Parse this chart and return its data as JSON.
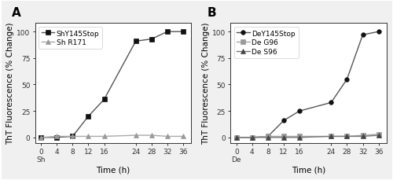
{
  "panel_A": {
    "label": "A",
    "series": [
      {
        "name": "ShY145Stop",
        "x": [
          0,
          4,
          8,
          12,
          16,
          24,
          28,
          32,
          36
        ],
        "y": [
          0,
          0,
          1,
          20,
          36,
          91,
          93,
          100,
          100
        ],
        "marker": "s",
        "color": "#111111",
        "linecolor": "#555555",
        "linewidth": 1.0,
        "markersize": 4
      },
      {
        "name": "Sh R171",
        "x": [
          0,
          4,
          8,
          12,
          16,
          24,
          28,
          32,
          36
        ],
        "y": [
          0,
          1,
          1,
          1,
          1,
          2,
          2,
          1,
          1
        ],
        "marker": "^",
        "color": "#999999",
        "linecolor": "#aaaaaa",
        "linewidth": 1.0,
        "markersize": 4
      }
    ],
    "xlabel": "Time (h)",
    "ylabel": "ThT Fluorescence (% Change)",
    "xlim": [
      -1.5,
      38
    ],
    "ylim": [
      -5,
      108
    ],
    "xticks": [
      0,
      4,
      8,
      12,
      16,
      24,
      28,
      32,
      36
    ],
    "xticklabels": [
      "0",
      "4",
      "8",
      "12",
      "16",
      "24",
      "28",
      "32",
      "36"
    ],
    "yticks": [
      0,
      25,
      50,
      75,
      100
    ],
    "x0_extra": "Sh",
    "x0_idx": 0
  },
  "panel_B": {
    "label": "B",
    "series": [
      {
        "name": "DeY145Stop",
        "x": [
          0,
          4,
          8,
          12,
          16,
          24,
          28,
          32,
          36
        ],
        "y": [
          0,
          0,
          1,
          16,
          25,
          33,
          55,
          97,
          100
        ],
        "marker": "o",
        "color": "#111111",
        "linecolor": "#555555",
        "linewidth": 1.0,
        "markersize": 4
      },
      {
        "name": "De G96",
        "x": [
          0,
          4,
          8,
          12,
          16,
          24,
          28,
          32,
          36
        ],
        "y": [
          0,
          0,
          1,
          1,
          1,
          1,
          1,
          2,
          3
        ],
        "marker": "s",
        "color": "#999999",
        "linecolor": "#aaaaaa",
        "linewidth": 1.0,
        "markersize": 4
      },
      {
        "name": "De S96",
        "x": [
          0,
          4,
          8,
          12,
          16,
          24,
          28,
          32,
          36
        ],
        "y": [
          0,
          0,
          0,
          0,
          0,
          1,
          1,
          1,
          2
        ],
        "marker": "^",
        "color": "#444444",
        "linecolor": "#777777",
        "linewidth": 1.0,
        "markersize": 4
      }
    ],
    "xlabel": "Time (h)",
    "ylabel": "ThT Fluorescence (% Change)",
    "xlim": [
      -1.5,
      38
    ],
    "ylim": [
      -5,
      108
    ],
    "xticks": [
      0,
      4,
      8,
      12,
      16,
      24,
      28,
      32,
      36
    ],
    "xticklabels": [
      "0",
      "4",
      "8",
      "12",
      "16",
      "24",
      "28",
      "32",
      "36"
    ],
    "yticks": [
      0,
      25,
      50,
      75,
      100
    ],
    "x0_extra": "De",
    "x0_idx": 0
  },
  "figure_bgcolor": "#f0f0f0",
  "axes_bgcolor": "#ffffff",
  "font_family": "Arial",
  "legend_fontsize": 6.5,
  "axis_label_fontsize": 7.5,
  "tick_fontsize": 6.5,
  "panel_label_fontsize": 11,
  "figsize": [
    5.0,
    2.3
  ],
  "dpi": 100
}
